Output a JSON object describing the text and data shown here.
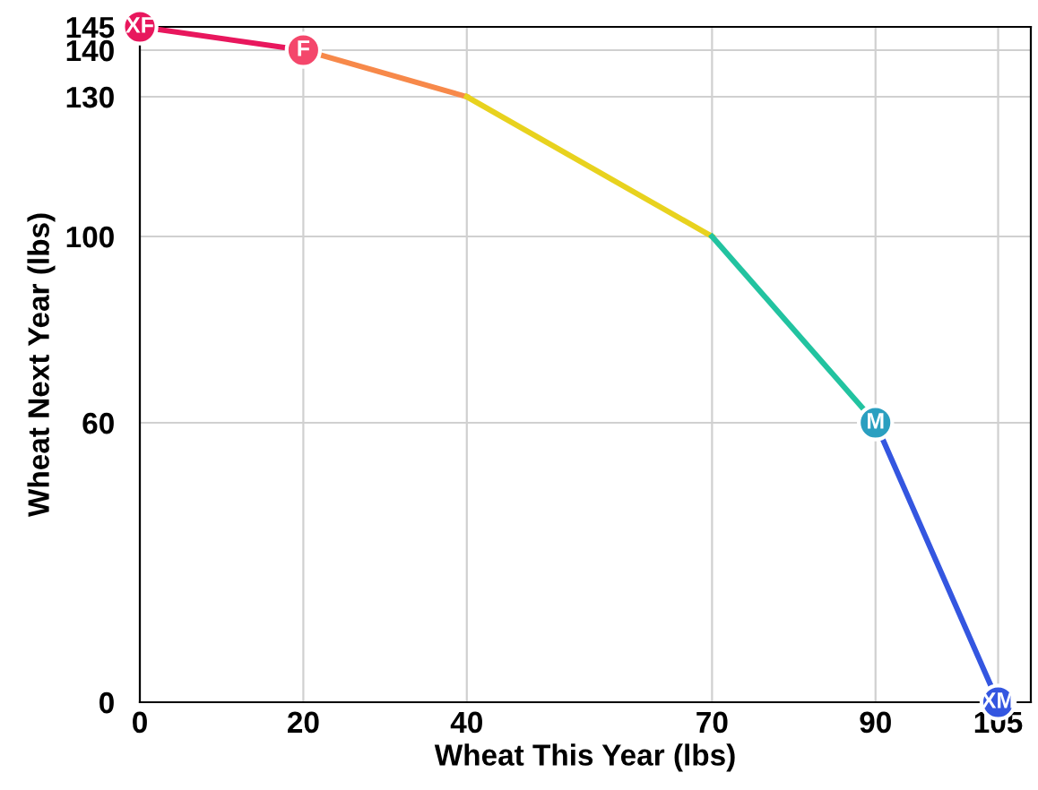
{
  "chart_data": {
    "type": "line",
    "xlabel": "Wheat This Year (lbs)",
    "ylabel": "Wheat Next Year (lbs)",
    "series": [
      {
        "color": "#e8175d",
        "x": [
          0,
          20
        ],
        "values": [
          145,
          140
        ]
      },
      {
        "color": "#f7894a",
        "x": [
          20,
          40
        ],
        "values": [
          140,
          130
        ]
      },
      {
        "color": "#e8d21e",
        "x": [
          40,
          70
        ],
        "values": [
          130,
          100
        ]
      },
      {
        "color": "#22c3a0",
        "x": [
          70,
          90
        ],
        "values": [
          100,
          60
        ]
      },
      {
        "color": "#3456e0",
        "x": [
          90,
          105
        ],
        "values": [
          60,
          0
        ]
      },
      {
        "type": "scatter",
        "marker": "circle",
        "colors": [
          "#e8175d",
          "#f4476b",
          "#2a9fc0",
          "#3456e0"
        ],
        "x": [
          0,
          20,
          90,
          105
        ],
        "values": [
          145,
          140,
          60,
          0
        ]
      }
    ],
    "annotations": [
      {
        "text": "XF",
        "x": 0,
        "y": 145
      },
      {
        "text": "F",
        "x": 20,
        "y": 140
      },
      {
        "text": "M",
        "x": 90,
        "y": 60
      },
      {
        "text": "XM",
        "x": 105,
        "y": 0
      }
    ],
    "xlim": [
      0,
      109
    ],
    "ylim": [
      0,
      145
    ],
    "xticks": [
      0,
      20,
      40,
      70,
      90,
      105
    ],
    "yticks": [
      0,
      60,
      100,
      130,
      140,
      145
    ],
    "grid": true,
    "line_style": "solid"
  }
}
